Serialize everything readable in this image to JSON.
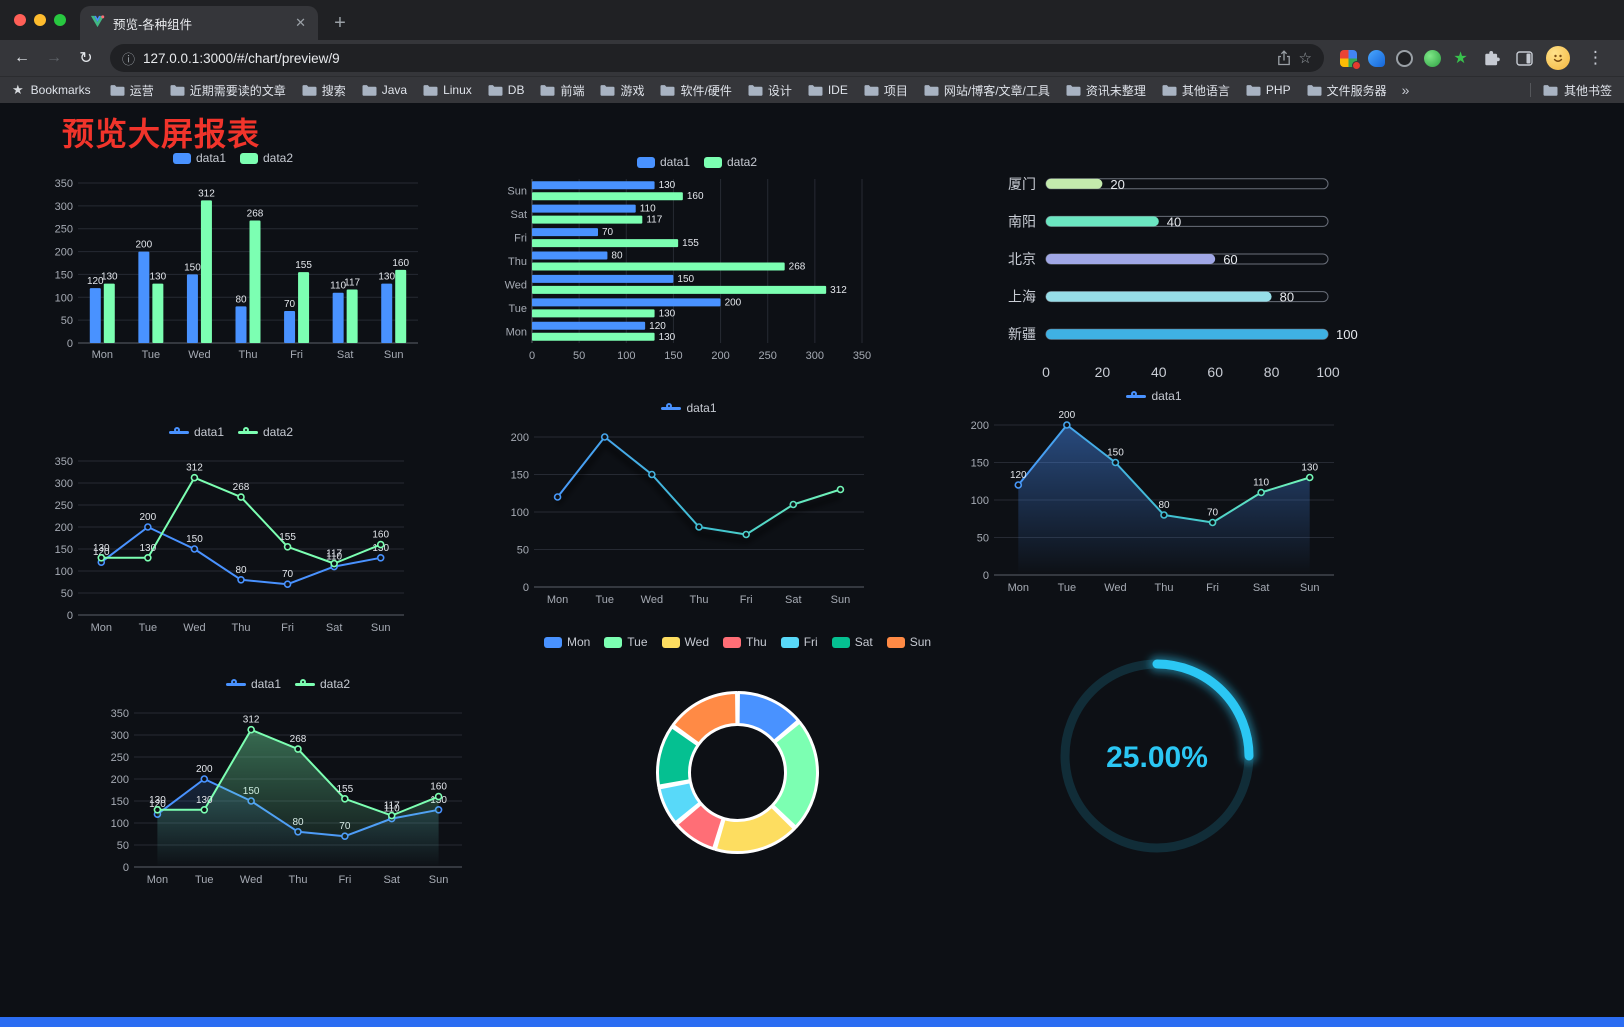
{
  "browser": {
    "tab_title": "预览-各种组件",
    "url": "127.0.0.1:3000/#/chart/preview/9",
    "bookmarks_label": "Bookmarks",
    "bookmarks": [
      "运营",
      "近期需要读的文章",
      "搜索",
      "Java",
      "Linux",
      "DB",
      "前端",
      "游戏",
      "软件/硬件",
      "设计",
      "IDE",
      "项目",
      "网站/博客/文章/工具",
      "资讯未整理",
      "其他语言",
      "PHP",
      "文件服务器"
    ],
    "overflow": "»",
    "other_bookmarks": "其他书签"
  },
  "icons": {
    "close": "✕",
    "plus": "+",
    "back": "←",
    "forward": "→",
    "reload": "↻",
    "info": "ⓘ",
    "star": "☆",
    "menu": "⋮",
    "bookmarks_star": "★",
    "ext_star": "★"
  },
  "page": {
    "title": "预览大屏报表",
    "title_color": "#f1342b",
    "background": "#0d1015",
    "accent_blue": "#4992ff",
    "accent_green": "#7cffb2"
  },
  "chart_data": [
    {
      "type": "bar",
      "legend": [
        "data1",
        "data2"
      ],
      "legend_style": "rect",
      "categories": [
        "Mon",
        "Tue",
        "Wed",
        "Thu",
        "Fri",
        "Sat",
        "Sun"
      ],
      "series": [
        {
          "name": "data1",
          "color": "#4992ff",
          "values": [
            120,
            200,
            150,
            80,
            70,
            110,
            130
          ]
        },
        {
          "name": "data2",
          "color": "#7cffb2",
          "values": [
            130,
            130,
            312,
            268,
            155,
            117,
            160
          ]
        }
      ],
      "ylim": [
        0,
        350
      ],
      "yticks": [
        0,
        50,
        100,
        150,
        200,
        250,
        300,
        350
      ],
      "labels": true
    },
    {
      "type": "hbar",
      "legend": [
        "data1",
        "data2"
      ],
      "legend_style": "rect",
      "categories": [
        "Mon",
        "Tue",
        "Wed",
        "Thu",
        "Fri",
        "Sat",
        "Sun"
      ],
      "series": [
        {
          "name": "data1",
          "color": "#4992ff",
          "values": [
            120,
            200,
            150,
            80,
            70,
            110,
            130
          ]
        },
        {
          "name": "data2",
          "color": "#7cffb2",
          "values": [
            130,
            130,
            312,
            268,
            155,
            117,
            160
          ]
        }
      ],
      "xlim": [
        0,
        350
      ],
      "xticks": [
        0,
        50,
        100,
        150,
        200,
        250,
        300,
        350
      ],
      "labels": true
    },
    {
      "type": "capsule",
      "categories": [
        "厦门",
        "南阳",
        "北京",
        "上海",
        "新疆"
      ],
      "values": [
        20,
        40,
        60,
        80,
        100
      ],
      "colors": [
        "#c4ebad",
        "#6be6c1",
        "#a0a7e6",
        "#96dee8",
        "#3fb1e3"
      ],
      "max": 100,
      "xticks": [
        0,
        20,
        40,
        60,
        80,
        100
      ]
    },
    {
      "type": "line",
      "legend": [
        "data1",
        "data2"
      ],
      "legend_style": "line",
      "categories": [
        "Mon",
        "Tue",
        "Wed",
        "Thu",
        "Fri",
        "Sat",
        "Sun"
      ],
      "series": [
        {
          "name": "data1",
          "color": "#4992ff",
          "values": [
            120,
            200,
            150,
            80,
            70,
            110,
            130
          ]
        },
        {
          "name": "data2",
          "color": "#7cffb2",
          "values": [
            130,
            130,
            312,
            268,
            155,
            117,
            160
          ]
        }
      ],
      "ylim": [
        0,
        350
      ],
      "yticks": [
        0,
        50,
        100,
        150,
        200,
        250,
        300,
        350
      ],
      "labels": true
    },
    {
      "type": "line",
      "legend": [
        "data1"
      ],
      "legend_style": "line",
      "categories": [
        "Mon",
        "Tue",
        "Wed",
        "Thu",
        "Fri",
        "Sat",
        "Sun"
      ],
      "series": [
        {
          "name": "data1",
          "color": "#4992ff",
          "gradient": true,
          "values": [
            120,
            200,
            150,
            80,
            70,
            110,
            130
          ]
        }
      ],
      "ylim": [
        0,
        200
      ],
      "yticks": [
        0,
        50,
        100,
        150,
        200
      ],
      "labels": false,
      "shadow": true
    },
    {
      "type": "line",
      "legend": [
        "data1"
      ],
      "legend_style": "line",
      "categories": [
        "Mon",
        "Tue",
        "Wed",
        "Thu",
        "Fri",
        "Sat",
        "Sun"
      ],
      "series": [
        {
          "name": "data1",
          "color": "#4992ff",
          "gradient": true,
          "area": true,
          "areaOpacity": 0.45,
          "values": [
            120,
            200,
            150,
            80,
            70,
            110,
            130
          ]
        }
      ],
      "ylim": [
        0,
        200
      ],
      "yticks": [
        0,
        50,
        100,
        150,
        200
      ],
      "labels": true
    },
    {
      "type": "line",
      "legend": [
        "data1",
        "data2"
      ],
      "legend_style": "line",
      "categories": [
        "Mon",
        "Tue",
        "Wed",
        "Thu",
        "Fri",
        "Sat",
        "Sun"
      ],
      "series": [
        {
          "name": "data1",
          "color": "#4992ff",
          "area": true,
          "areaOpacity": 0.16,
          "values": [
            120,
            200,
            150,
            80,
            70,
            110,
            130
          ]
        },
        {
          "name": "data2",
          "color": "#7cffb2",
          "area": true,
          "areaOpacity": 0.38,
          "values": [
            130,
            130,
            312,
            268,
            155,
            117,
            160
          ]
        }
      ],
      "ylim": [
        0,
        350
      ],
      "yticks": [
        0,
        50,
        100,
        150,
        200,
        250,
        300,
        350
      ],
      "labels": true
    },
    {
      "type": "pie",
      "legend": [
        "Mon",
        "Tue",
        "Wed",
        "Thu",
        "Fri",
        "Sat",
        "Sun"
      ],
      "legend_style": "rect",
      "values": [
        120,
        200,
        150,
        80,
        70,
        110,
        130
      ],
      "colors": [
        "#4992ff",
        "#7cffb2",
        "#fddd60",
        "#ff6e76",
        "#58d9f9",
        "#05c091",
        "#ff8a45"
      ]
    },
    {
      "type": "gauge",
      "value": 25,
      "label": "25.00%",
      "color": "#2bc7f4"
    }
  ]
}
